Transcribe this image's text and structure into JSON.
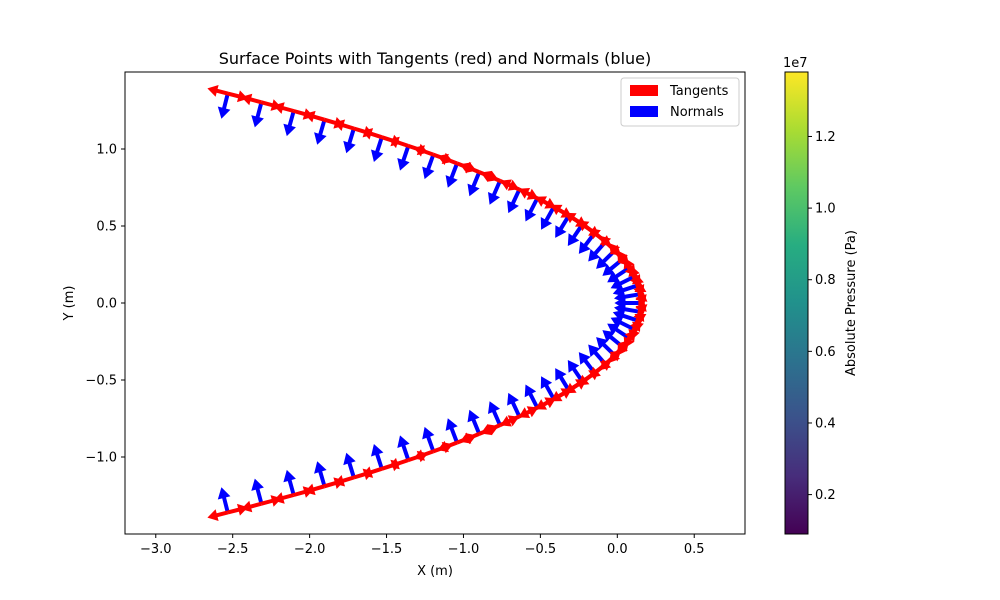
{
  "chart_data": {
    "type": "quiver",
    "title": "Surface Points with Tangents (red) and Normals (blue)",
    "xlabel": "X (m)",
    "ylabel": "Y (m)",
    "xlim": [
      -3.2,
      0.83
    ],
    "ylim": [
      -1.5,
      1.5
    ],
    "xticks": [
      -3.0,
      -2.5,
      -2.0,
      -1.5,
      -1.0,
      -0.5,
      0.0,
      0.5
    ],
    "xtick_labels": [
      "−3.0",
      "−2.5",
      "−2.0",
      "−1.5",
      "−1.0",
      "−0.5",
      "0.0",
      "0.5"
    ],
    "yticks": [
      -1.0,
      -0.5,
      0.0,
      0.5,
      1.0
    ],
    "ytick_labels": [
      "−1.0",
      "−0.5",
      "0.0",
      "0.5",
      "1.0"
    ],
    "grid": false,
    "legend_position": "top-right",
    "surface": {
      "description_shape": "parabola x = 0.15 - 1.45*y^2",
      "x_vertex": 0.15,
      "curvature": 1.45,
      "y_range": [
        -1.36,
        1.36
      ],
      "point_count": 49
    },
    "series": [
      {
        "name": "Tangents",
        "color": "#ff0000",
        "kind": "bidirectional tangent arrows"
      },
      {
        "name": "Normals",
        "color": "#0000ff",
        "kind": "inward normal arrows"
      }
    ],
    "colorbar": {
      "label": "Absolute Pressure (Pa)",
      "exponent_label": "1e7",
      "range": [
        0.09,
        1.38
      ],
      "ticks": [
        0.2,
        0.4,
        0.6,
        0.8,
        1.0,
        1.2
      ],
      "tick_labels": [
        "0.2",
        "0.4",
        "0.6",
        "0.8",
        "1.0",
        "1.2"
      ],
      "colormap": "viridis"
    }
  }
}
